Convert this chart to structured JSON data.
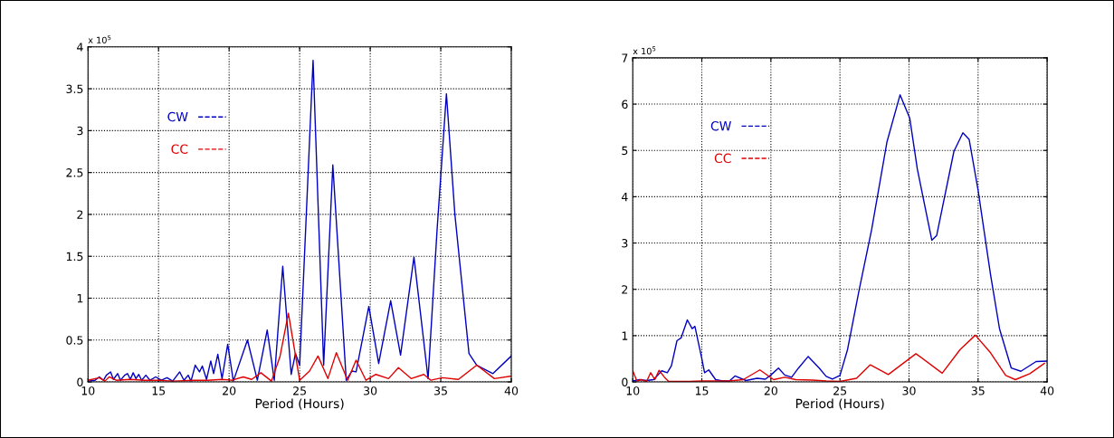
{
  "chart_data": [
    {
      "type": "line",
      "xlabel": "Period (Hours)",
      "annotations": [
        "x 10$^{5}$"
      ],
      "xlim": [
        10,
        40
      ],
      "ylim": [
        0,
        4
      ],
      "xticks": [
        10,
        15,
        20,
        25,
        30,
        35,
        40
      ],
      "yticks": [
        0,
        0.5,
        1,
        1.5,
        2,
        2.5,
        3,
        3.5,
        4
      ],
      "grid": true,
      "legend": "upper left",
      "line_style": "solid",
      "marker": "none",
      "series": [
        {
          "name": "CW",
          "color": "#0000c0",
          "x": [
            10,
            10.5,
            10.8,
            11.1,
            11.3,
            11.6,
            11.8,
            12.1,
            12.3,
            12.6,
            12.8,
            13.0,
            13.2,
            13.4,
            13.6,
            13.8,
            14.1,
            14.4,
            14.8,
            15.2,
            15.6,
            16.0,
            16.5,
            16.8,
            17.1,
            17.3,
            17.6,
            17.9,
            18.1,
            18.4,
            18.7,
            18.9,
            19.2,
            19.5,
            19.9,
            20.3,
            21.3,
            22.0,
            22.7,
            23.2,
            23.8,
            24.4,
            24.7,
            25.0,
            25.95,
            26.7,
            27.35,
            28.3,
            28.7,
            29.0,
            29.9,
            30.6,
            31.45,
            32.15,
            33.1,
            34.1,
            34.74,
            35.4,
            36.0,
            37.0,
            37.55,
            38.7,
            40.0
          ],
          "values": [
            0.01,
            0.02,
            0.06,
            0.02,
            0.08,
            0.12,
            0.03,
            0.1,
            0.02,
            0.08,
            0.1,
            0.03,
            0.11,
            0.04,
            0.09,
            0.02,
            0.08,
            0.02,
            0.06,
            0.02,
            0.05,
            0.01,
            0.12,
            0.02,
            0.08,
            0.01,
            0.2,
            0.12,
            0.19,
            0.03,
            0.25,
            0.1,
            0.33,
            0.04,
            0.45,
            0.01,
            0.5,
            0.02,
            0.62,
            0.02,
            1.38,
            0.09,
            0.34,
            0.2,
            3.84,
            0.2,
            2.59,
            0.02,
            0.13,
            0.12,
            0.9,
            0.22,
            0.97,
            0.32,
            1.49,
            0.04,
            1.82,
            3.44,
            2.0,
            0.34,
            0.2,
            0.1,
            0.31
          ]
        },
        {
          "name": "CC",
          "color": "#e00000",
          "x": [
            10,
            10.8,
            11.2,
            11.5,
            12.0,
            13.0,
            14.0,
            15.0,
            16.0,
            17.5,
            18.5,
            19.5,
            20.2,
            21.0,
            21.6,
            22.25,
            23.0,
            23.6,
            24.2,
            25.0,
            25.7,
            26.3,
            27.0,
            27.6,
            28.4,
            29.0,
            29.7,
            30.4,
            31.3,
            32.0,
            32.9,
            33.8,
            34.3,
            35.1,
            36.25,
            37.55,
            38.8,
            40.0
          ],
          "values": [
            0.02,
            0.05,
            0.01,
            0.06,
            0.02,
            0.03,
            0.02,
            0.02,
            0.01,
            0.02,
            0.02,
            0.03,
            0.02,
            0.06,
            0.03,
            0.11,
            0.01,
            0.3,
            0.82,
            0.02,
            0.13,
            0.31,
            0.04,
            0.35,
            0.02,
            0.26,
            0.02,
            0.09,
            0.04,
            0.17,
            0.04,
            0.09,
            0.02,
            0.05,
            0.03,
            0.2,
            0.04,
            0.07
          ]
        }
      ]
    },
    {
      "type": "line",
      "xlabel": "Period (Hours)",
      "annotations": [
        "x 10$^{5}$"
      ],
      "xlim": [
        10,
        40
      ],
      "ylim": [
        0,
        7
      ],
      "xticks": [
        10,
        15,
        20,
        25,
        30,
        35,
        40
      ],
      "yticks": [
        0,
        1,
        2,
        3,
        4,
        5,
        6,
        7
      ],
      "grid": true,
      "legend": "upper left",
      "line_style": "solid",
      "marker": "none",
      "series": [
        {
          "name": "CW",
          "color": "#0000c0",
          "x": [
            10,
            10.5,
            11,
            11.5,
            12.1,
            12.5,
            12.8,
            13.2,
            13.5,
            13.95,
            14.3,
            14.5,
            15.0,
            15.2,
            15.5,
            16.0,
            16.5,
            17.0,
            17.4,
            18.2,
            19.0,
            19.6,
            20.0,
            20.55,
            21.0,
            21.5,
            22.0,
            22.7,
            23.5,
            24.0,
            24.45,
            25.0,
            25.55,
            26.4,
            27.3,
            28.4,
            29.35,
            30.05,
            30.6,
            31.65,
            32.0,
            33.25,
            33.9,
            34.35,
            35.0,
            35.9,
            36.55,
            37.4,
            38.1,
            39.2,
            40.0
          ],
          "values": [
            0.02,
            0.05,
            0.03,
            0.05,
            0.24,
            0.2,
            0.35,
            0.89,
            0.95,
            1.34,
            1.15,
            1.2,
            0.5,
            0.2,
            0.26,
            0.05,
            0.02,
            0.02,
            0.13,
            0.03,
            0.08,
            0.06,
            0.15,
            0.3,
            0.15,
            0.1,
            0.3,
            0.55,
            0.3,
            0.12,
            0.06,
            0.14,
            0.7,
            2.0,
            3.3,
            5.18,
            6.2,
            5.7,
            4.6,
            3.06,
            3.16,
            4.98,
            5.38,
            5.24,
            4.14,
            2.32,
            1.15,
            0.3,
            0.23,
            0.44,
            0.45
          ]
        },
        {
          "name": "CC",
          "color": "#e00000",
          "x": [
            10,
            10.3,
            10.6,
            11.0,
            11.3,
            11.6,
            11.9,
            12.3,
            12.6,
            14.0,
            15.0,
            17.0,
            18.0,
            19.2,
            20.2,
            21.0,
            21.8,
            23.0,
            24.0,
            25.0,
            26.2,
            27.2,
            28.5,
            30.5,
            32.4,
            33.7,
            34.8,
            35.9,
            37.0,
            37.7,
            38.75,
            39.8
          ],
          "values": [
            0.24,
            0.02,
            0.05,
            0.01,
            0.2,
            0.05,
            0.25,
            0.1,
            0.01,
            0.01,
            0.02,
            0.02,
            0.05,
            0.26,
            0.05,
            0.1,
            0.05,
            0.04,
            0.02,
            0.01,
            0.08,
            0.37,
            0.16,
            0.61,
            0.19,
            0.7,
            1.01,
            0.63,
            0.14,
            0.05,
            0.18,
            0.4
          ]
        }
      ]
    }
  ]
}
